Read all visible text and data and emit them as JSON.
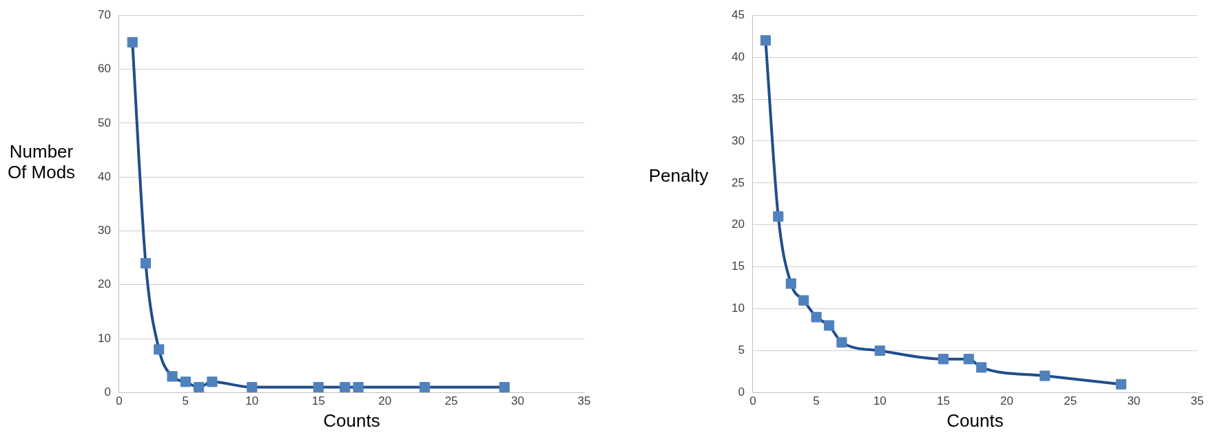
{
  "chart_data": [
    {
      "type": "line",
      "xlabel": "Counts",
      "ylabel": "Number Of Mods",
      "x": [
        1,
        2,
        3,
        4,
        5,
        6,
        7,
        10,
        15,
        17,
        18,
        23,
        29
      ],
      "series": [
        {
          "color": "#4f81bd",
          "values": [
            65,
            24,
            8,
            3,
            2,
            1,
            2,
            1,
            1,
            1,
            1,
            1,
            1
          ]
        }
      ],
      "xlim": [
        0,
        35
      ],
      "xticks": [
        0,
        5,
        10,
        15,
        20,
        25,
        30,
        35
      ],
      "ylim": [
        0,
        70
      ],
      "yticks": [
        0,
        10,
        20,
        30,
        40,
        50,
        60,
        70
      ],
      "grid": "y",
      "legend": false,
      "marker": "square",
      "line_style": "solid"
    },
    {
      "type": "line",
      "xlabel": "Counts",
      "ylabel": "Penalty",
      "x": [
        1,
        2,
        3,
        4,
        5,
        6,
        7,
        10,
        15,
        17,
        18,
        23,
        29
      ],
      "series": [
        {
          "color": "#4f81bd",
          "values": [
            42,
            21,
            13,
            11,
            9,
            8,
            6,
            5,
            4,
            4,
            3,
            2,
            1
          ]
        }
      ],
      "xlim": [
        0,
        35
      ],
      "xticks": [
        0,
        5,
        10,
        15,
        20,
        25,
        30,
        35
      ],
      "ylim": [
        0,
        45
      ],
      "yticks": [
        0,
        5,
        10,
        15,
        20,
        25,
        30,
        35,
        40,
        45
      ],
      "grid": "y",
      "legend": false,
      "marker": "square",
      "line_style": "solid"
    }
  ]
}
